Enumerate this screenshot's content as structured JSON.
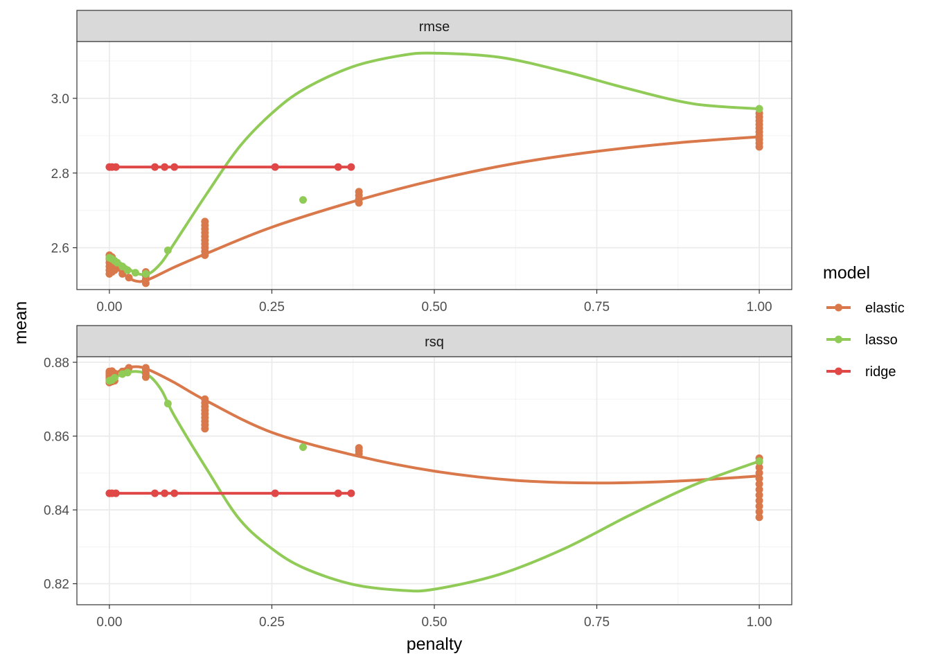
{
  "chart_data": {
    "type": "line",
    "xlabel": "penalty",
    "ylabel": "mean",
    "legend": {
      "title": "model",
      "position": "right",
      "entries": [
        {
          "name": "elastic",
          "color": "#D9784A"
        },
        {
          "name": "lasso",
          "color": "#90CB57"
        },
        {
          "name": "ridge",
          "color": "#E04848"
        }
      ]
    },
    "grid": true,
    "x_ticks": [
      {
        "value": 0,
        "label": "0.00"
      },
      {
        "value": 0.25,
        "label": "0.25"
      },
      {
        "value": 0.5,
        "label": "0.50"
      },
      {
        "value": 0.75,
        "label": "0.75"
      },
      {
        "value": 1,
        "label": "1.00"
      }
    ],
    "xlim": [
      -0.05,
      1.05
    ],
    "panels": [
      {
        "strip": "rmse",
        "ylim": [
          2.488,
          3.152
        ],
        "y_ticks": [
          {
            "value": 2.6,
            "label": "2.6"
          },
          {
            "value": 2.8,
            "label": "2.8"
          },
          {
            "value": 3.0,
            "label": "3.0"
          }
        ],
        "series": [
          {
            "name": "elastic",
            "points": [
              [
                0,
                2.53
              ],
              [
                0,
                2.54
              ],
              [
                0,
                2.55
              ],
              [
                0,
                2.56
              ],
              [
                0,
                2.57
              ],
              [
                0,
                2.58
              ],
              [
                0.004,
                2.535
              ],
              [
                0.004,
                2.555
              ],
              [
                0.004,
                2.575
              ],
              [
                0.008,
                2.54
              ],
              [
                0.008,
                2.56
              ],
              [
                0.012,
                2.55
              ],
              [
                0.02,
                2.53
              ],
              [
                0.03,
                2.52
              ],
              [
                0.056,
                2.505
              ],
              [
                0.056,
                2.515
              ],
              [
                0.056,
                2.525
              ],
              [
                0.056,
                2.535
              ],
              [
                0.147,
                2.58
              ],
              [
                0.147,
                2.59
              ],
              [
                0.147,
                2.6
              ],
              [
                0.147,
                2.61
              ],
              [
                0.147,
                2.62
              ],
              [
                0.147,
                2.63
              ],
              [
                0.147,
                2.64
              ],
              [
                0.147,
                2.65
              ],
              [
                0.147,
                2.66
              ],
              [
                0.147,
                2.67
              ],
              [
                0.384,
                2.72
              ],
              [
                0.384,
                2.73
              ],
              [
                0.384,
                2.74
              ],
              [
                0.384,
                2.75
              ],
              [
                1,
                2.87
              ],
              [
                1,
                2.88
              ],
              [
                1,
                2.89
              ],
              [
                1,
                2.9
              ],
              [
                1,
                2.91
              ],
              [
                1,
                2.92
              ],
              [
                1,
                2.93
              ],
              [
                1,
                2.94
              ],
              [
                1,
                2.95
              ],
              [
                1,
                2.96
              ]
            ],
            "curve": [
              [
                0,
                2.565
              ],
              [
                0.02,
                2.532
              ],
              [
                0.04,
                2.511
              ],
              [
                0.06,
                2.515
              ],
              [
                0.1,
                2.548
              ],
              [
                0.15,
                2.585
              ],
              [
                0.25,
                2.655
              ],
              [
                0.384,
                2.728
              ],
              [
                0.5,
                2.781
              ],
              [
                0.625,
                2.826
              ],
              [
                0.75,
                2.858
              ],
              [
                0.875,
                2.881
              ],
              [
                1,
                2.897
              ]
            ]
          },
          {
            "name": "lasso",
            "points": [
              [
                0,
                2.573
              ],
              [
                0.004,
                2.57
              ],
              [
                0.008,
                2.565
              ],
              [
                0.012,
                2.56
              ],
              [
                0.02,
                2.55
              ],
              [
                0.028,
                2.54
              ],
              [
                0.04,
                2.533
              ],
              [
                0.056,
                2.53
              ],
              [
                0.09,
                2.593
              ],
              [
                0.298,
                2.728
              ],
              [
                1,
                2.972
              ]
            ],
            "curve": [
              [
                0,
                2.575
              ],
              [
                0.02,
                2.556
              ],
              [
                0.04,
                2.533
              ],
              [
                0.06,
                2.53
              ],
              [
                0.08,
                2.56
              ],
              [
                0.1,
                2.612
              ],
              [
                0.15,
                2.745
              ],
              [
                0.2,
                2.87
              ],
              [
                0.25,
                2.96
              ],
              [
                0.3,
                3.025
              ],
              [
                0.375,
                3.085
              ],
              [
                0.45,
                3.115
              ],
              [
                0.5,
                3.121
              ],
              [
                0.6,
                3.11
              ],
              [
                0.7,
                3.072
              ],
              [
                0.8,
                3.025
              ],
              [
                0.9,
                2.985
              ],
              [
                1,
                2.972
              ]
            ]
          },
          {
            "name": "ridge",
            "points": [
              [
                0,
                2.816
              ],
              [
                0.004,
                2.816
              ],
              [
                0.01,
                2.816
              ],
              [
                0.07,
                2.816
              ],
              [
                0.085,
                2.816
              ],
              [
                0.1,
                2.816
              ],
              [
                0.255,
                2.816
              ],
              [
                0.352,
                2.816
              ],
              [
                0.372,
                2.816
              ]
            ],
            "curve": [
              [
                0,
                2.816
              ],
              [
                0.372,
                2.816
              ]
            ]
          }
        ]
      },
      {
        "strip": "rsq",
        "ylim": [
          0.8143,
          0.8815
        ],
        "y_ticks": [
          {
            "value": 0.82,
            "label": "0.82"
          },
          {
            "value": 0.84,
            "label": "0.84"
          },
          {
            "value": 0.86,
            "label": "0.86"
          },
          {
            "value": 0.88,
            "label": "0.88"
          }
        ],
        "series": [
          {
            "name": "elastic",
            "points": [
              [
                0,
                0.8745
              ],
              [
                0,
                0.875
              ],
              [
                0,
                0.8755
              ],
              [
                0,
                0.876
              ],
              [
                0,
                0.8765
              ],
              [
                0,
                0.877
              ],
              [
                0,
                0.8775
              ],
              [
                0.004,
                0.8748
              ],
              [
                0.004,
                0.8762
              ],
              [
                0.004,
                0.8776
              ],
              [
                0.008,
                0.875
              ],
              [
                0.008,
                0.877
              ],
              [
                0.02,
                0.8775
              ],
              [
                0.03,
                0.8785
              ],
              [
                0.056,
                0.876
              ],
              [
                0.056,
                0.877
              ],
              [
                0.056,
                0.878
              ],
              [
                0.056,
                0.8785
              ],
              [
                0.147,
                0.862
              ],
              [
                0.147,
                0.863
              ],
              [
                0.147,
                0.864
              ],
              [
                0.147,
                0.865
              ],
              [
                0.147,
                0.866
              ],
              [
                0.147,
                0.867
              ],
              [
                0.147,
                0.868
              ],
              [
                0.147,
                0.869
              ],
              [
                0.147,
                0.87
              ],
              [
                0.384,
                0.8552
              ],
              [
                0.384,
                0.856
              ],
              [
                0.384,
                0.8568
              ],
              [
                1,
                0.838
              ],
              [
                1,
                0.8395
              ],
              [
                1,
                0.841
              ],
              [
                1,
                0.8425
              ],
              [
                1,
                0.844
              ],
              [
                1,
                0.8455
              ],
              [
                1,
                0.847
              ],
              [
                1,
                0.8485
              ],
              [
                1,
                0.85
              ],
              [
                1,
                0.8515
              ],
              [
                1,
                0.853
              ],
              [
                1,
                0.854
              ]
            ],
            "curve": [
              [
                0,
                0.876
              ],
              [
                0.02,
                0.878
              ],
              [
                0.04,
                0.8788
              ],
              [
                0.06,
                0.878
              ],
              [
                0.1,
                0.8745
              ],
              [
                0.15,
                0.8695
              ],
              [
                0.25,
                0.861
              ],
              [
                0.384,
                0.8545
              ],
              [
                0.5,
                0.8505
              ],
              [
                0.625,
                0.848
              ],
              [
                0.75,
                0.8473
              ],
              [
                0.875,
                0.8478
              ],
              [
                1,
                0.8492
              ]
            ]
          },
          {
            "name": "lasso",
            "points": [
              [
                0,
                0.875
              ],
              [
                0.004,
                0.8752
              ],
              [
                0.008,
                0.8758
              ],
              [
                0.02,
                0.8768
              ],
              [
                0.028,
                0.8772
              ],
              [
                0.09,
                0.8688
              ],
              [
                0.298,
                0.857
              ],
              [
                1,
                0.8532
              ]
            ],
            "curve": [
              [
                0,
                0.8752
              ],
              [
                0.02,
                0.8768
              ],
              [
                0.04,
                0.8775
              ],
              [
                0.06,
                0.8765
              ],
              [
                0.08,
                0.8725
              ],
              [
                0.1,
                0.8655
              ],
              [
                0.15,
                0.851
              ],
              [
                0.2,
                0.8375
              ],
              [
                0.25,
                0.8295
              ],
              [
                0.3,
                0.8242
              ],
              [
                0.375,
                0.8198
              ],
              [
                0.45,
                0.8182
              ],
              [
                0.5,
                0.8185
              ],
              [
                0.6,
                0.8225
              ],
              [
                0.7,
                0.8295
              ],
              [
                0.8,
                0.8385
              ],
              [
                0.9,
                0.8468
              ],
              [
                1,
                0.8532
              ]
            ]
          },
          {
            "name": "ridge",
            "points": [
              [
                0,
                0.8445
              ],
              [
                0.004,
                0.8445
              ],
              [
                0.01,
                0.8445
              ],
              [
                0.07,
                0.8445
              ],
              [
                0.085,
                0.8445
              ],
              [
                0.1,
                0.8445
              ],
              [
                0.255,
                0.8445
              ],
              [
                0.352,
                0.8445
              ],
              [
                0.372,
                0.8445
              ]
            ],
            "curve": [
              [
                0,
                0.8445
              ],
              [
                0.372,
                0.8445
              ]
            ]
          }
        ]
      }
    ]
  }
}
